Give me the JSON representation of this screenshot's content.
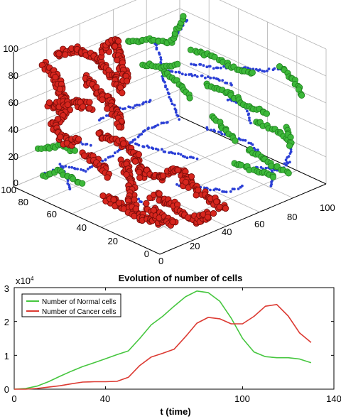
{
  "chart_data": [
    {
      "type": "scatter3d",
      "xticks": [
        "0",
        "20",
        "40",
        "60",
        "80",
        "100"
      ],
      "yticks": [
        "0",
        "20",
        "40",
        "60",
        "80",
        "100"
      ],
      "zticks": [
        "0",
        "20",
        "40",
        "60",
        "80",
        "100"
      ],
      "xlim": [
        0,
        100
      ],
      "ylim": [
        0,
        100
      ],
      "zlim": [
        0,
        100
      ],
      "grid": true,
      "colors": {
        "normal_fill": "#3db83a",
        "normal_edge": "#1e7f1e",
        "cancer_fill": "#d7261e",
        "cancer_edge": "#7a0d0a",
        "vessel": "#2b3fd6"
      }
    },
    {
      "type": "line",
      "title": "Evolution of number of cells",
      "xlabel": "t (time)",
      "ylabel": "",
      "xlim": [
        0,
        140
      ],
      "ylim": [
        0,
        30000
      ],
      "xticks": [
        "0",
        "40",
        "100",
        "140"
      ],
      "yticks": [
        "0",
        "1",
        "2",
        "3"
      ],
      "y_multiplier": "x10",
      "y_exponent": "4",
      "legend": "top-left",
      "x": [
        0,
        5,
        10,
        15,
        20,
        25,
        30,
        35,
        40,
        45,
        50,
        55,
        60,
        65,
        70,
        75,
        80,
        85,
        90,
        95,
        100,
        105,
        110,
        115,
        120,
        125,
        130
      ],
      "series": [
        {
          "name": "Number of Normal cells",
          "color": "#46c63f",
          "values": [
            0,
            200,
            900,
            2200,
            3800,
            5300,
            6700,
            7800,
            9000,
            10200,
            11300,
            15000,
            19000,
            21500,
            24500,
            27300,
            29000,
            28500,
            26000,
            21000,
            15000,
            11000,
            9600,
            9300,
            9300,
            8900,
            7800
          ]
        },
        {
          "name": "Number of Cancer cells",
          "color": "#dc3a32",
          "values": [
            0,
            0,
            200,
            600,
            1000,
            1600,
            2100,
            2200,
            2200,
            2300,
            3500,
            7000,
            9500,
            10600,
            11800,
            15500,
            19500,
            21200,
            20800,
            19300,
            19300,
            21500,
            24500,
            25000,
            21600,
            16600,
            13800
          ]
        }
      ]
    }
  ]
}
